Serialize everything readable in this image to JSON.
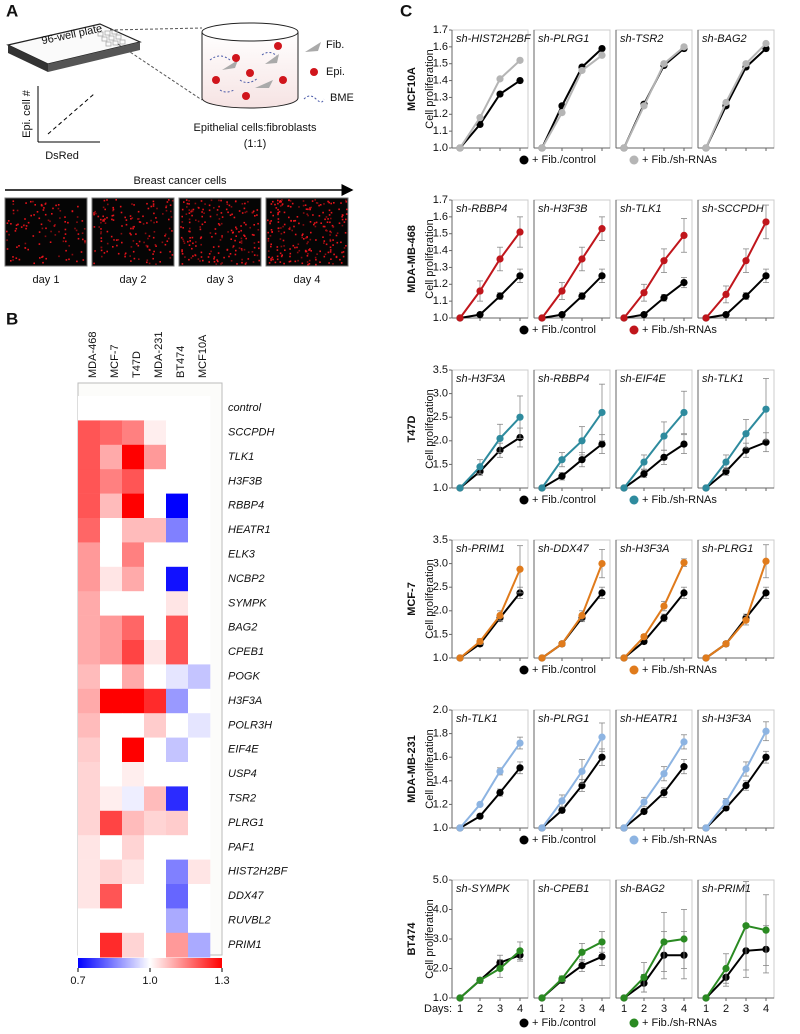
{
  "panel_a": {
    "label": "A",
    "plate": "96-well plate",
    "legend": [
      "Fib.",
      "Epi.",
      "BME"
    ],
    "y_axis": "Epi. cell #",
    "x_axis": "DsRed",
    "ratio": "Epithelial cells:fibroblasts",
    "ratio_sub": "(1:1)",
    "arrow": "Breast cancer cells",
    "days": [
      "day 1",
      "day 2",
      "day 3",
      "day 4"
    ]
  },
  "panel_b": {
    "label": "B",
    "columns": [
      "MDA-468",
      "MCF-7",
      "T47D",
      "MDA-231",
      "BT474",
      "MCF10A"
    ],
    "rows": [
      "control",
      "SCCPDH",
      "TLK1",
      "H3F3B",
      "RBBP4",
      "HEATR1",
      "ELK3",
      "NCBP2",
      "SYMPK",
      "BAG2",
      "CPEB1",
      "POGK",
      "H3F3A",
      "POLR3H",
      "EIF4E",
      "USP4",
      "TSR2",
      "PLRG1",
      "PAF1",
      "HIST2H2BF",
      "DDX47",
      "RUVBL2",
      "PRIM1"
    ],
    "values": [
      [
        1,
        1,
        1,
        1,
        1,
        1
      ],
      [
        1.2,
        1.18,
        1.15,
        1.02,
        1,
        1
      ],
      [
        1.2,
        1.1,
        1.3,
        1.12,
        1,
        1
      ],
      [
        1.2,
        1.15,
        1.2,
        1,
        1,
        1
      ],
      [
        1.2,
        1.08,
        1.3,
        1,
        0.7,
        1
      ],
      [
        1.18,
        1,
        1.08,
        1.08,
        0.85,
        1
      ],
      [
        1.12,
        1,
        1.15,
        1,
        1,
        1
      ],
      [
        1.12,
        1.03,
        1.1,
        1,
        0.72,
        1
      ],
      [
        1.1,
        1,
        1,
        1,
        1.03,
        1
      ],
      [
        1.1,
        1.12,
        1.18,
        1,
        1.2,
        1
      ],
      [
        1.1,
        1.12,
        1.22,
        1.03,
        1.2,
        1
      ],
      [
        1.08,
        1,
        1.1,
        1,
        0.97,
        0.93
      ],
      [
        1.1,
        1.3,
        1.3,
        1.25,
        0.88,
        1
      ],
      [
        1.08,
        1,
        1,
        1.06,
        1,
        0.97
      ],
      [
        1.06,
        1,
        1.3,
        1,
        0.93,
        1
      ],
      [
        1.05,
        1,
        1.02,
        1,
        1,
        1
      ],
      [
        1.05,
        1.02,
        0.98,
        1.08,
        0.75,
        1
      ],
      [
        1.05,
        1.22,
        1.08,
        1.05,
        1.06,
        1
      ],
      [
        1.03,
        1,
        1.05,
        1,
        1,
        1
      ],
      [
        1.03,
        1.05,
        1.03,
        1,
        0.85,
        1.03
      ],
      [
        1.03,
        1.2,
        1,
        1,
        0.82,
        1
      ],
      [
        1,
        1,
        1,
        1,
        0.9,
        1
      ],
      [
        1,
        1.25,
        1.05,
        1,
        1.12,
        0.9
      ]
    ],
    "colorbar_lim": [
      0.7,
      1.3
    ],
    "colorbar_ticks": [
      0.7,
      {
        "value": 1,
        "label": "1.0"
      },
      1.3
    ],
    "colors": [
      "#0000ff",
      "#ffffff",
      "#ff0000"
    ]
  },
  "panel_c": {
    "label": "C",
    "y_label": "Cell proliferation",
    "x_label": "Days:",
    "xticks": [
      1,
      2,
      3,
      4
    ],
    "xlim": [
      0.6,
      4.4
    ],
    "legend": [
      "+ Fib./control",
      "+ Fib./sh-RNAs"
    ],
    "control_color": "#000000",
    "rows": [
      {
        "cell_line": "MCF10A",
        "color": "#b5b5b5",
        "ylim": [
          1,
          1.7
        ],
        "yticks": [
          {
            "value": 1,
            "label": "1.0"
          },
          1.1,
          1.2,
          1.3,
          1.4,
          1.5,
          1.6,
          1.7
        ],
        "plots": [
          {
            "title": "sh-HIST2H2BF",
            "control": [
              1,
              1.14,
              1.32,
              1.4
            ],
            "sh_rnas": [
              1,
              1.18,
              1.41,
              1.52
            ]
          },
          {
            "title": "sh-PLRG1",
            "control": [
              1,
              1.25,
              1.48,
              1.59
            ],
            "sh_rnas": [
              1,
              1.21,
              1.46,
              1.55
            ]
          },
          {
            "title": "sh-TSR2",
            "control": [
              1,
              1.26,
              1.49,
              1.59
            ],
            "sh_rnas": [
              1,
              1.25,
              1.5,
              1.6
            ]
          },
          {
            "title": "sh-BAG2",
            "control": [
              1,
              1.25,
              1.48,
              1.59
            ],
            "sh_rnas": [
              1,
              1.27,
              1.5,
              1.62
            ]
          }
        ]
      },
      {
        "cell_line": "MDA-MB-468",
        "color": "#c0161c",
        "ylim": [
          1,
          1.7
        ],
        "yticks": [
          {
            "value": 1,
            "label": "1.0"
          },
          1.1,
          1.2,
          1.3,
          1.4,
          1.5,
          1.6,
          1.7
        ],
        "plots": [
          {
            "title": "sh-RBBP4",
            "control": [
              1,
              1.02,
              1.13,
              1.25
            ],
            "sh_rnas": [
              1,
              1.16,
              1.35,
              1.51
            ],
            "control_err": [
              0,
              0.01,
              0.02,
              0.04
            ],
            "sh_rnas_err": [
              0,
              0.06,
              0.07,
              0.09
            ]
          },
          {
            "title": "sh-H3F3B",
            "control": [
              1,
              1.02,
              1.13,
              1.25
            ],
            "sh_rnas": [
              1,
              1.16,
              1.35,
              1.53
            ],
            "control_err": [
              0,
              0.01,
              0.02,
              0.04
            ],
            "sh_rnas_err": [
              0,
              0.05,
              0.07,
              0.07
            ]
          },
          {
            "title": "sh-TLK1",
            "control": [
              1,
              1.02,
              1.12,
              1.21
            ],
            "sh_rnas": [
              1,
              1.15,
              1.34,
              1.49
            ],
            "control_err": [
              0,
              0.01,
              0.02,
              0.03
            ],
            "sh_rnas_err": [
              0,
              0.05,
              0.07,
              0.1
            ]
          },
          {
            "title": "sh-SCCPDH",
            "control": [
              1,
              1.02,
              1.13,
              1.25
            ],
            "sh_rnas": [
              1,
              1.14,
              1.34,
              1.57
            ],
            "control_err": [
              0,
              0.01,
              0.02,
              0.04
            ],
            "sh_rnas_err": [
              0,
              0.05,
              0.07,
              0.1
            ]
          }
        ]
      },
      {
        "cell_line": "T47D",
        "color": "#2e8b9e",
        "ylim": [
          1,
          3.5
        ],
        "yticks": [
          {
            "value": 1,
            "label": "1.0"
          },
          1.5,
          {
            "value": 2,
            "label": "2.0"
          },
          2.5,
          {
            "value": 3,
            "label": "3.0"
          },
          3.5
        ],
        "plots": [
          {
            "title": "sh-H3F3A",
            "control": [
              1,
              1.35,
              1.8,
              2.07
            ],
            "sh_rnas": [
              1,
              1.45,
              2.05,
              2.5
            ],
            "control_err": [
              0,
              0.08,
              0.15,
              0.2
            ],
            "sh_rnas_err": [
              0,
              0.15,
              0.3,
              0.45
            ]
          },
          {
            "title": "sh-RBBP4",
            "control": [
              1,
              1.25,
              1.6,
              1.93
            ],
            "sh_rnas": [
              1,
              1.6,
              2.0,
              2.6
            ],
            "control_err": [
              0,
              0.08,
              0.15,
              0.2
            ],
            "sh_rnas_err": [
              0,
              0.15,
              0.3,
              0.6
            ]
          },
          {
            "title": "sh-EIF4E",
            "control": [
              1,
              1.3,
              1.65,
              1.93
            ],
            "sh_rnas": [
              1,
              1.55,
              2.1,
              2.6
            ],
            "control_err": [
              0,
              0.08,
              0.15,
              0.2
            ],
            "sh_rnas_err": [
              0,
              0.15,
              0.3,
              0.45
            ]
          },
          {
            "title": "sh-TLK1",
            "control": [
              1,
              1.35,
              1.8,
              1.97
            ],
            "sh_rnas": [
              1,
              1.55,
              2.15,
              2.67
            ],
            "control_err": [
              0,
              0.08,
              0.15,
              0.2
            ],
            "sh_rnas_err": [
              0,
              0.15,
              0.3,
              0.65
            ]
          }
        ]
      },
      {
        "cell_line": "MCF-7",
        "color": "#e07b1c",
        "ylim": [
          1,
          3.5
        ],
        "yticks": [
          {
            "value": 1,
            "label": "1.0"
          },
          1.5,
          {
            "value": 2,
            "label": "2.0"
          },
          2.5,
          {
            "value": 3,
            "label": "3.0"
          },
          3.5
        ],
        "plots": [
          {
            "title": "sh-PRIM1",
            "control": [
              1,
              1.3,
              1.85,
              2.38
            ],
            "sh_rnas": [
              1,
              1.35,
              1.9,
              2.88
            ],
            "control_err": [
              0,
              0.05,
              0.08,
              0.12
            ],
            "sh_rnas_err": [
              0,
              0.06,
              0.1,
              0.5
            ]
          },
          {
            "title": "sh-DDX47",
            "control": [
              1,
              1.3,
              1.85,
              2.38
            ],
            "sh_rnas": [
              1,
              1.3,
              1.9,
              3.0
            ],
            "control_err": [
              0,
              0.05,
              0.08,
              0.12
            ],
            "sh_rnas_err": [
              0,
              0.05,
              0.1,
              0.3
            ]
          },
          {
            "title": "sh-H3F3A",
            "control": [
              1,
              1.35,
              1.85,
              2.38
            ],
            "sh_rnas": [
              1,
              1.45,
              2.1,
              3.02
            ],
            "control_err": [
              0,
              0.05,
              0.08,
              0.12
            ],
            "sh_rnas_err": [
              0,
              0.05,
              0.1,
              0.08
            ]
          },
          {
            "title": "sh-PLRG1",
            "control": [
              1,
              1.3,
              1.85,
              2.38
            ],
            "sh_rnas": [
              1,
              1.3,
              1.8,
              3.05
            ],
            "control_err": [
              0,
              0.05,
              0.08,
              0.12
            ],
            "sh_rnas_err": [
              0,
              0.05,
              0.1,
              0.35
            ]
          }
        ]
      },
      {
        "cell_line": "MDA-MB-231",
        "color": "#8db4e2",
        "ylim": [
          1,
          2
        ],
        "yticks": [
          {
            "value": 1,
            "label": "1.0"
          },
          1.2,
          1.4,
          1.6,
          1.8,
          {
            "value": 2,
            "label": "2.0"
          }
        ],
        "plots": [
          {
            "title": "sh-TLK1",
            "control": [
              1,
              1.1,
              1.3,
              1.51
            ],
            "sh_rnas": [
              1,
              1.2,
              1.48,
              1.72
            ],
            "control_err": [
              0,
              0.01,
              0.03,
              0.05
            ],
            "sh_rnas_err": [
              0,
              0.01,
              0.03,
              0.05
            ]
          },
          {
            "title": "sh-PLRG1",
            "control": [
              1,
              1.15,
              1.36,
              1.6
            ],
            "sh_rnas": [
              1,
              1.23,
              1.48,
              1.77
            ],
            "control_err": [
              0,
              0.02,
              0.05,
              0.07
            ],
            "sh_rnas_err": [
              0,
              0.05,
              0.1,
              0.12
            ]
          },
          {
            "title": "sh-HEATR1",
            "control": [
              1,
              1.14,
              1.3,
              1.52
            ],
            "sh_rnas": [
              1,
              1.22,
              1.46,
              1.73
            ],
            "control_err": [
              0,
              0.02,
              0.04,
              0.06
            ],
            "sh_rnas_err": [
              0,
              0.04,
              0.06,
              0.06
            ]
          },
          {
            "title": "sh-H3F3A",
            "control": [
              1,
              1.17,
              1.36,
              1.6
            ],
            "sh_rnas": [
              1,
              1.22,
              1.5,
              1.82
            ],
            "control_err": [
              0,
              0.02,
              0.04,
              0.05
            ],
            "sh_rnas_err": [
              0,
              0.03,
              0.06,
              0.08
            ]
          }
        ]
      },
      {
        "cell_line": "BT474",
        "color": "#2a8a22",
        "ylim": [
          1,
          5
        ],
        "yticks": [
          {
            "value": 1,
            "label": "1.0"
          },
          {
            "value": 2,
            "label": "2.0"
          },
          {
            "value": 3,
            "label": "3.0"
          },
          {
            "value": 4,
            "label": "4.0"
          },
          {
            "value": 5,
            "label": "5.0"
          }
        ],
        "plots": [
          {
            "title": "sh-SYMPK",
            "control": [
              1,
              1.6,
              2.2,
              2.45
            ],
            "sh_rnas": [
              1,
              1.6,
              2.0,
              2.6
            ],
            "control_err": [
              0,
              0.1,
              0.25,
              0.2
            ],
            "sh_rnas_err": [
              0,
              0.1,
              0.3,
              0.3
            ]
          },
          {
            "title": "sh-CPEB1",
            "control": [
              1,
              1.6,
              2.1,
              2.4
            ],
            "sh_rnas": [
              1,
              1.65,
              2.55,
              2.9
            ],
            "control_err": [
              0,
              0.1,
              0.2,
              0.3
            ],
            "sh_rnas_err": [
              0,
              0.1,
              0.3,
              0.35
            ]
          },
          {
            "title": "sh-BAG2",
            "control": [
              1,
              1.5,
              2.45,
              2.45
            ],
            "sh_rnas": [
              1,
              1.7,
              2.9,
              3.0
            ],
            "control_err": [
              0,
              0.3,
              0.8,
              0.8
            ],
            "sh_rnas_err": [
              0,
              0.5,
              1.0,
              1.0
            ]
          },
          {
            "title": "sh-PRIM1",
            "control": [
              1,
              1.7,
              2.6,
              2.65
            ],
            "sh_rnas": [
              1,
              2.0,
              3.45,
              3.3
            ],
            "control_err": [
              0,
              0.3,
              0.9,
              0.8
            ],
            "sh_rnas_err": [
              0,
              0.5,
              1.5,
              1.2
            ]
          }
        ]
      }
    ]
  }
}
